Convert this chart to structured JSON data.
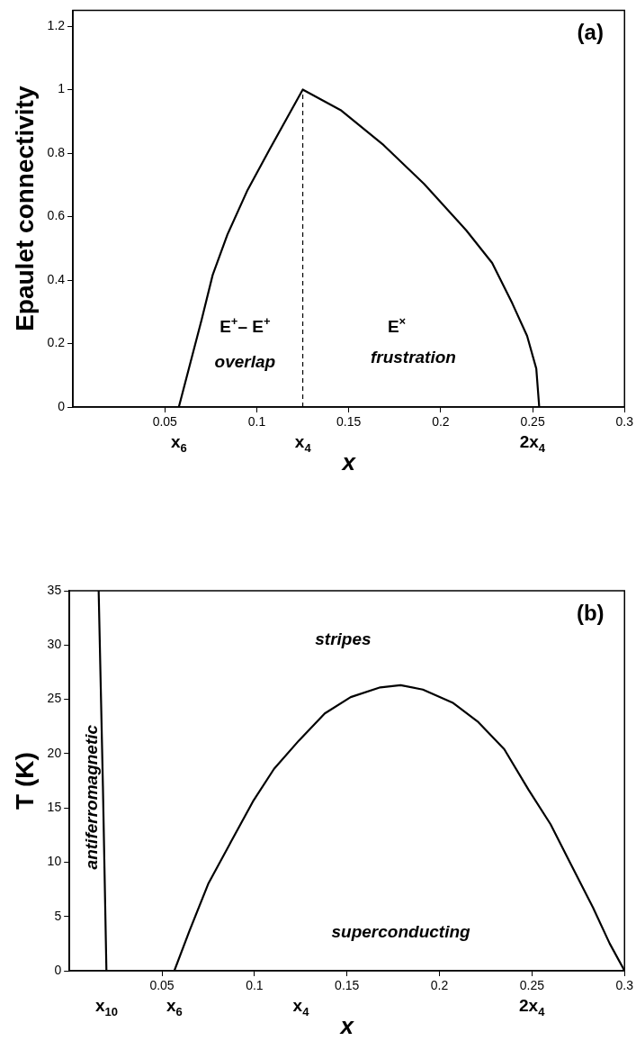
{
  "chart_data": [
    {
      "type": "line",
      "title": "(a)",
      "xlabel": "x",
      "ylabel": "Epaulet connectivity",
      "xlim": [
        0,
        0.3
      ],
      "xticks": [
        0.05,
        0.1,
        0.15,
        0.2,
        0.25,
        0.3
      ],
      "ylim": [
        0,
        1.25
      ],
      "yticks": [
        0,
        0.2,
        0.4,
        0.6,
        0.8,
        1,
        1.2
      ],
      "grid": false,
      "legend": false,
      "marker": "none",
      "series": [
        {
          "color": "#000000",
          "x": [
            0.0576,
            0.063,
            0.07,
            0.076,
            0.084,
            0.095,
            0.107,
            0.118,
            0.125,
            0.146,
            0.169,
            0.191,
            0.214,
            0.228,
            0.239,
            0.247,
            0.252,
            0.2536
          ],
          "values": [
            0,
            0.12,
            0.275,
            0.416,
            0.543,
            0.684,
            0.812,
            0.927,
            1,
            0.934,
            0.825,
            0.703,
            0.556,
            0.454,
            0.326,
            0.224,
            0.121,
            0
          ]
        },
        {
          "color": "#000000",
          "line_style": "dashed",
          "x": [
            0.125,
            0.125
          ],
          "values": [
            0,
            1
          ]
        }
      ],
      "annotations": [
        "E$^{+}$– E$^{+}$",
        "overlap",
        "E$^{×}$",
        "frustration",
        "x$_{6}$",
        "x$_{4}$",
        "2x$_{4}$"
      ]
    },
    {
      "type": "line",
      "title": "(b)",
      "xlabel": "x",
      "ylabel": "T (K)",
      "xlim": [
        0,
        0.3
      ],
      "xticks": [
        0.05,
        0.1,
        0.15,
        0.2,
        0.25,
        0.3
      ],
      "ylim": [
        0,
        35
      ],
      "yticks": [
        0,
        5,
        10,
        15,
        20,
        25,
        30,
        35
      ],
      "grid": false,
      "legend": false,
      "marker": "none",
      "series": [
        {
          "color": "#000000",
          "x": [
            0.0158,
            0.0181,
            0.02
          ],
          "values": [
            35,
            17,
            0
          ]
        },
        {
          "color": "#000000",
          "x": [
            0.0567,
            0.0647,
            0.075,
            0.0877,
            0.0992,
            0.1106,
            0.124,
            0.138,
            0.152,
            0.168,
            0.179,
            0.191,
            0.207,
            0.221,
            0.235,
            0.248,
            0.26,
            0.271,
            0.283,
            0.292,
            0.3
          ],
          "values": [
            0,
            3.6,
            8.0,
            12.0,
            15.6,
            18.6,
            21.2,
            23.7,
            25.2,
            26.1,
            26.3,
            25.9,
            24.7,
            22.9,
            20.4,
            16.7,
            13.5,
            9.8,
            5.8,
            2.5,
            0
          ]
        }
      ],
      "annotations": [
        "stripes",
        "superconducting",
        "antiferromagnetic",
        "x$_{10}$",
        "x$_{6}$",
        "x$_{4}$",
        "2x$_{4}$"
      ]
    }
  ]
}
